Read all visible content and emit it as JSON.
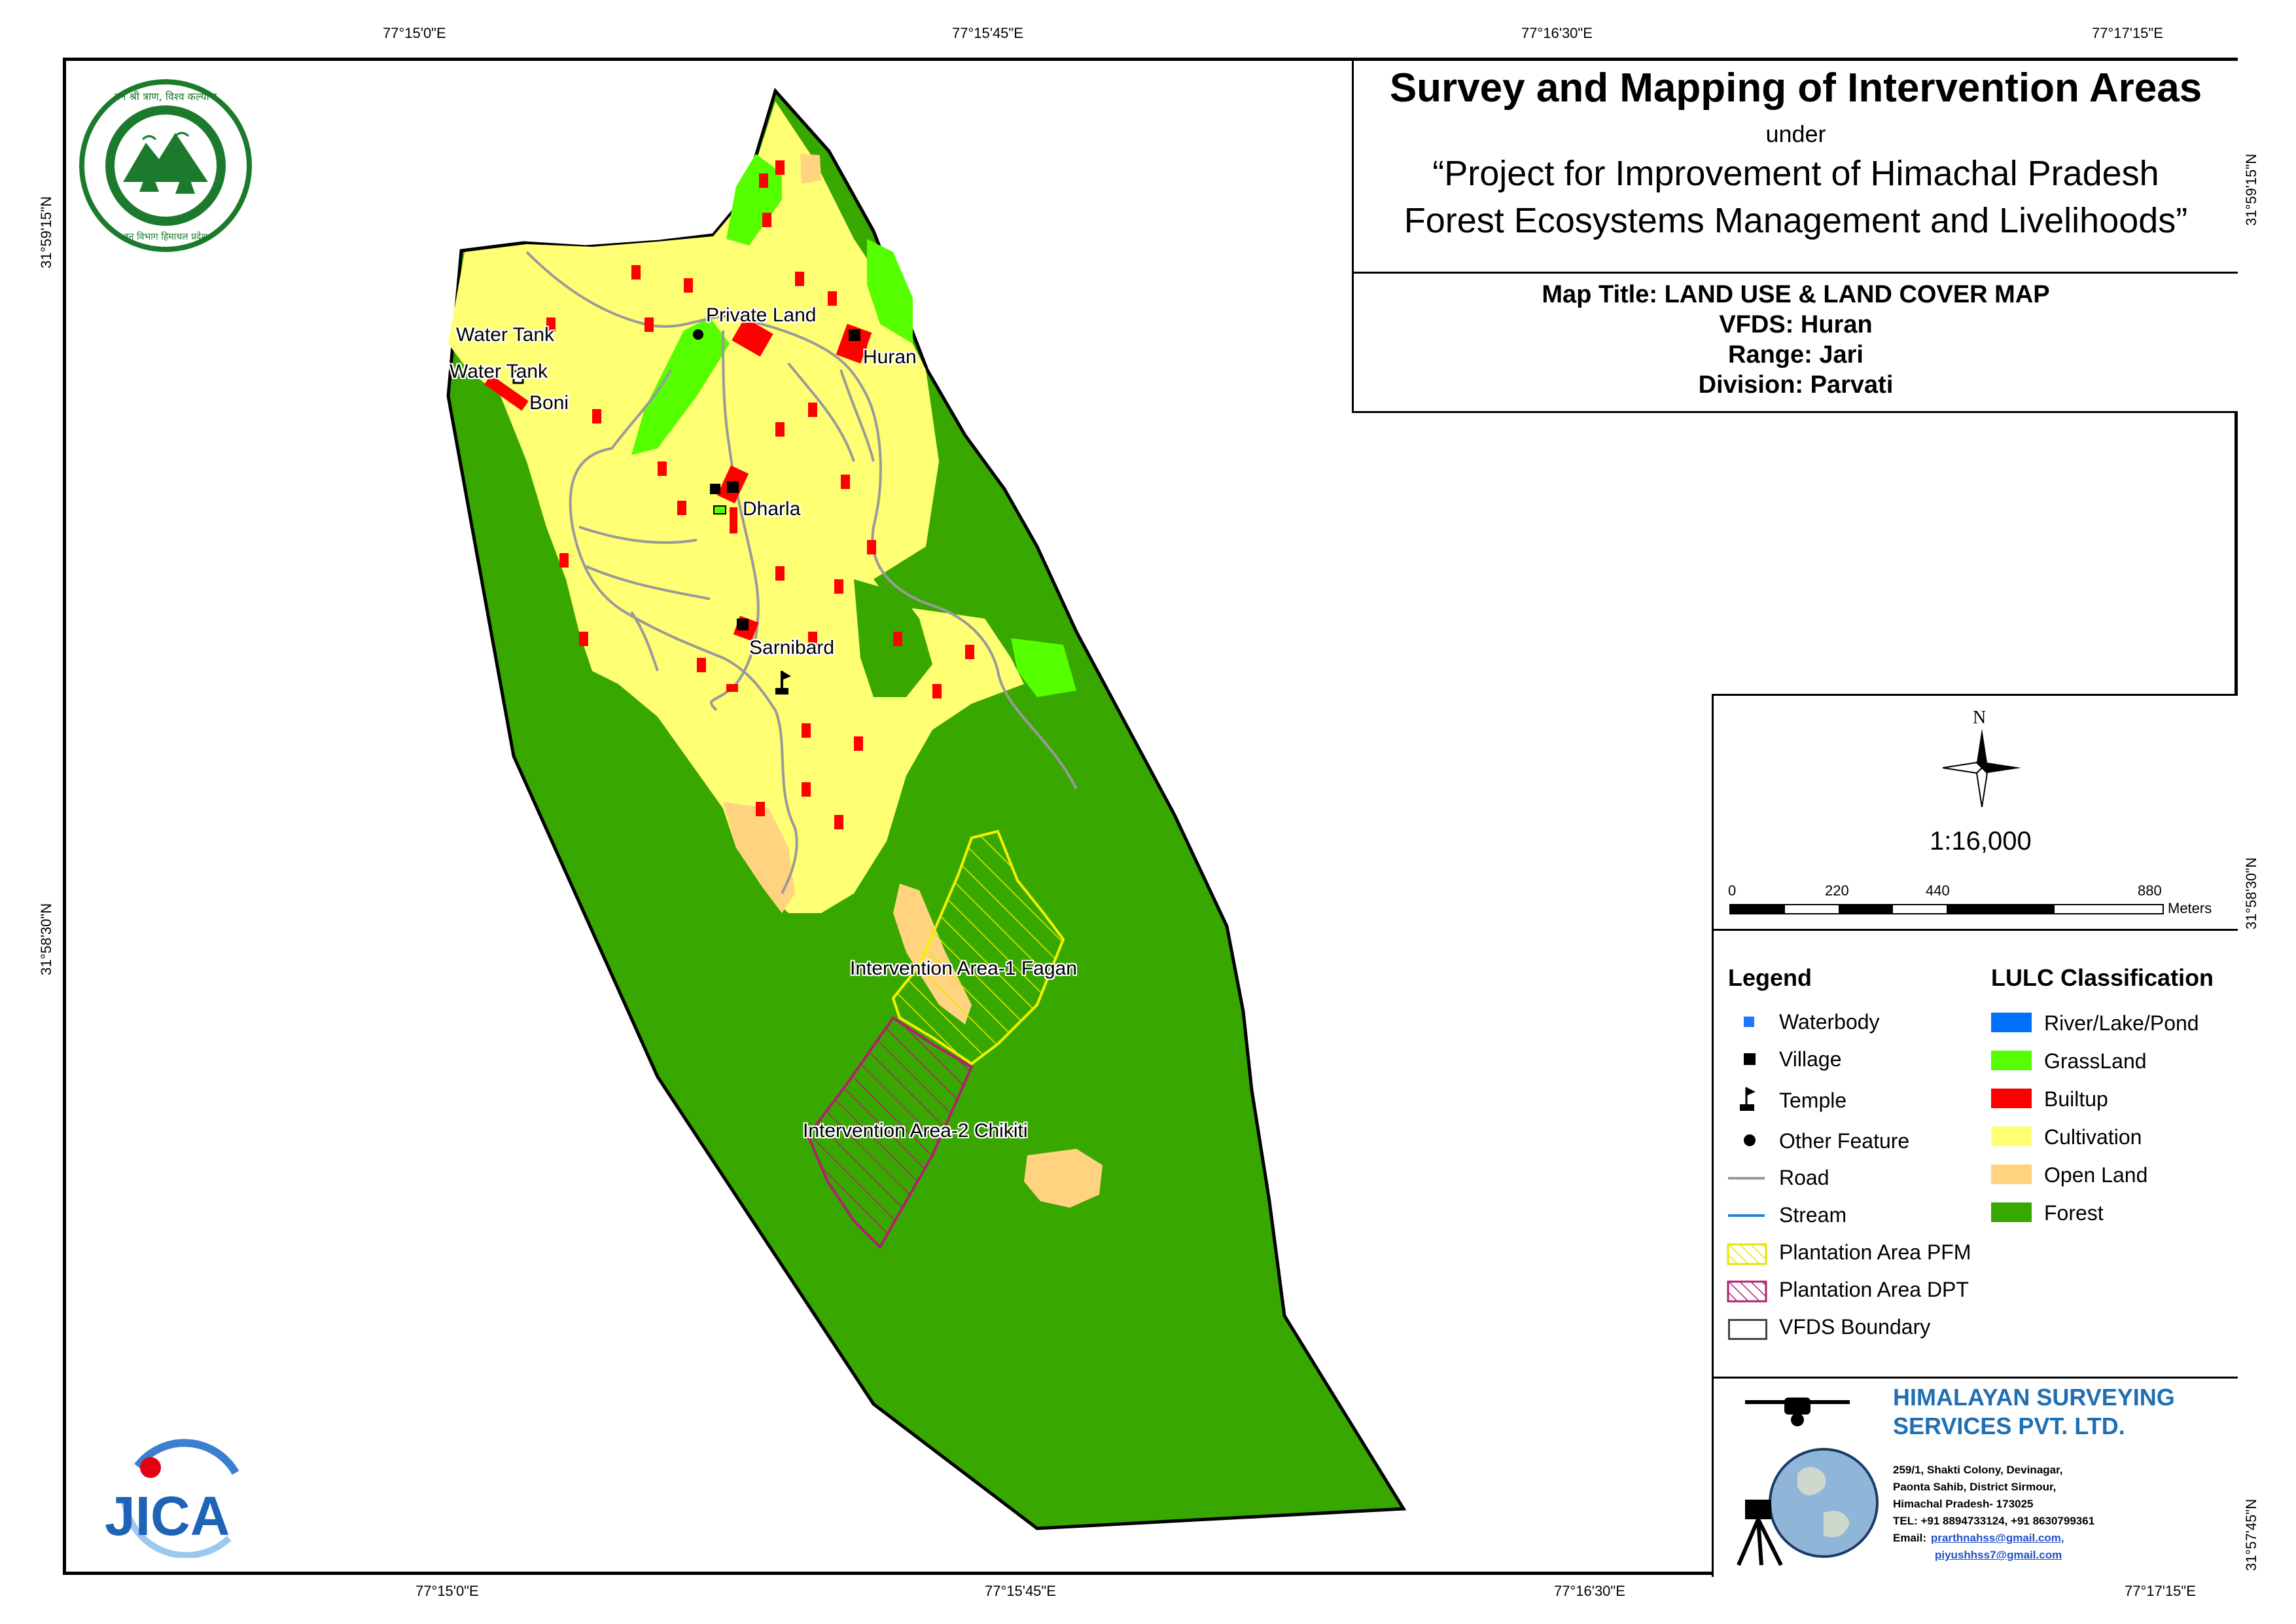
{
  "graticule": {
    "top": [
      "77°15'0\"E",
      "77°15'45\"E",
      "77°16'30\"E",
      "77°17'15\"E"
    ],
    "bottom": [
      "77°15'0\"E",
      "77°15'45\"E",
      "77°16'30\"E",
      "77°17'15\"E"
    ],
    "left": [
      "31°59'15\"N",
      "31°58'30\"N"
    ],
    "right": [
      "31°59'15\"N",
      "31°58'30\"N",
      "31°57'45\"N"
    ]
  },
  "title": {
    "main": "Survey and Mapping of Intervention Areas",
    "under": "under",
    "project_line1": "“Project for Improvement of Himachal Pradesh",
    "project_line2": "Forest Ecosystems Management and Livelihoods”"
  },
  "map_info": {
    "map_title": "Map Title: LAND USE & LAND COVER MAP",
    "vfds": "VFDS: Huran",
    "range": "Range: Jari",
    "division": "Division: Parvati"
  },
  "scale": {
    "north_label": "N",
    "ratio": "1:16,000",
    "labels": [
      "0",
      "220",
      "440",
      "880"
    ],
    "unit": "Meters"
  },
  "legend": {
    "title": "Legend",
    "items": [
      {
        "label": "Waterbody",
        "icon": "waterbody-square-icon"
      },
      {
        "label": "Village",
        "icon": "village-square-icon"
      },
      {
        "label": "Temple",
        "icon": "temple-flag-icon"
      },
      {
        "label": "Other Feature",
        "icon": "other-feature-dot-icon"
      },
      {
        "label": "Road",
        "icon": "road-line-icon"
      },
      {
        "label": "Stream",
        "icon": "stream-line-icon"
      },
      {
        "label": "Plantation Area PFM",
        "icon": "pfm-hatch-icon"
      },
      {
        "label": "Plantation Area DPT",
        "icon": "dpt-hatch-icon"
      },
      {
        "label": "VFDS Boundary",
        "icon": "boundary-box-icon"
      }
    ]
  },
  "lulc": {
    "title": "LULC Classification",
    "classes": [
      {
        "label": "River/Lake/Pond",
        "color": "#0070ff"
      },
      {
        "label": "GrassLand",
        "color": "#55ff00"
      },
      {
        "label": "Builtup",
        "color": "#ff0000"
      },
      {
        "label": "Cultivation",
        "color": "#ffff73"
      },
      {
        "label": "Open Land",
        "color": "#ffd37f"
      },
      {
        "label": "Forest",
        "color": "#38a800"
      }
    ]
  },
  "places": {
    "water_tank_1": "Water Tank",
    "water_tank_2": "Water Tank",
    "boni": "Boni",
    "private_land": "Private Land",
    "huran": "Huran",
    "dharla": "Dharla",
    "sarnibard": "Sarnibard",
    "intervention_1": "Intervention Area-1 Fagan",
    "intervention_2": "Intervention Area-2 Chikiti"
  },
  "company": {
    "name_line1": "HIMALAYAN SURVEYING",
    "name_line2": "SERVICES PVT. LTD.",
    "address_1": "259/1, Shakti Colony, Devinagar,",
    "address_2": "Paonta Sahib, District Sirmour,",
    "address_3": "Himachal Pradesh- 173025",
    "tel": "TEL: +91 8894733124, +91 8630799361",
    "email_label": "Email:",
    "email_1": "prarthnahss@gmail.com,",
    "email_2": "piyushhss7@gmail.com"
  },
  "logos": {
    "forest_dept_text_top": "वन श्री त्राण, विश्व कल्याण",
    "forest_dept_text_bottom": "वन विभाग हिमाचल प्रदेश",
    "jica": "JICA"
  }
}
